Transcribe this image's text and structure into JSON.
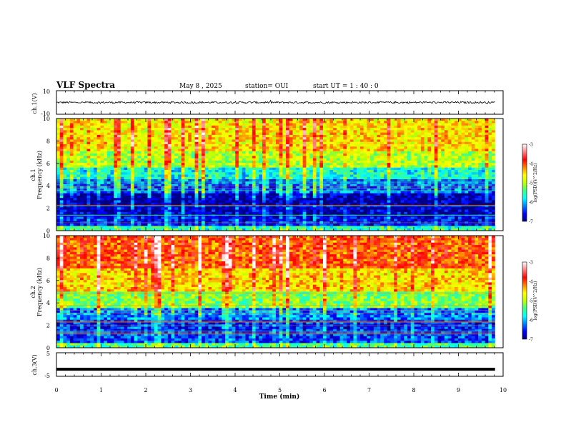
{
  "header": {
    "title": "VLF Spectra",
    "date": "May 8 , 2025",
    "station": "station= OUI",
    "start": "start UT = 1 : 40 : 0"
  },
  "chart_data": [
    {
      "type": "line",
      "panel": "ch1-waveform",
      "ylabel": "ch.1(V)",
      "ylim": [
        -10,
        10
      ],
      "y_ticks": [
        "10",
        "-10"
      ],
      "xlim": [
        0,
        10
      ],
      "series": [
        {
          "baseline": 0,
          "noise_amplitude": 0.8,
          "values_note_min": -1.5,
          "values_note_max": 1.5
        }
      ]
    },
    {
      "type": "heatmap",
      "panel": "ch1-spectrogram",
      "ylabel_line1": "ch.1",
      "ylabel_line2": "Frequency (kHz)",
      "ylim": [
        0,
        10
      ],
      "y_ticks": [
        "0",
        "2",
        "4",
        "6",
        "8",
        "10"
      ],
      "xlim": [
        0,
        9.82
      ],
      "freq_bands_khz": [
        {
          "from": 0.0,
          "to": 0.4,
          "level": -5.6
        },
        {
          "from": 0.4,
          "to": 1.2,
          "level": -6.6
        },
        {
          "from": 1.2,
          "to": 2.2,
          "level": -6.8
        },
        {
          "from": 2.2,
          "to": 3.3,
          "level": -6.9
        },
        {
          "from": 3.3,
          "to": 4.6,
          "level": -6.3
        },
        {
          "from": 4.6,
          "to": 5.6,
          "level": -5.7
        },
        {
          "from": 5.6,
          "to": 7.0,
          "level": -5.0
        },
        {
          "from": 7.0,
          "to": 10.0,
          "level": -4.6
        }
      ],
      "colorbar": {
        "label": "log(PSD)(V^2/Hz)",
        "range": [
          -7,
          -3
        ],
        "ticks": [
          "-3",
          "-4",
          "-5",
          "-6",
          "-7"
        ]
      }
    },
    {
      "type": "heatmap",
      "panel": "ch2-spectrogram",
      "ylabel_line1": "ch.2",
      "ylabel_line2": "Frequency (kHz)",
      "ylim": [
        0,
        10
      ],
      "y_ticks": [
        "0",
        "2",
        "4",
        "6",
        "8",
        "10"
      ],
      "xlim": [
        0,
        9.82
      ],
      "freq_bands_khz": [
        {
          "from": 0.0,
          "to": 0.4,
          "level": -5.4
        },
        {
          "from": 0.4,
          "to": 1.4,
          "level": -6.4
        },
        {
          "from": 1.4,
          "to": 2.6,
          "level": -6.5
        },
        {
          "from": 2.6,
          "to": 3.6,
          "level": -6.2
        },
        {
          "from": 3.6,
          "to": 5.0,
          "level": -5.2
        },
        {
          "from": 5.0,
          "to": 7.0,
          "level": -4.5
        },
        {
          "from": 7.0,
          "to": 10.0,
          "level": -4.0
        }
      ],
      "colorbar": {
        "label": "log(PSD)(V^2/Hz)",
        "range": [
          -7,
          -3
        ],
        "ticks": [
          "-3",
          "-4",
          "-5",
          "-6",
          "-7"
        ]
      }
    },
    {
      "type": "line",
      "panel": "ch3-waveform",
      "ylabel": "ch.3(V)",
      "ylim": [
        -5,
        5
      ],
      "y_ticks": [
        "5",
        "-5"
      ],
      "xlim": [
        0,
        10
      ],
      "series": [
        {
          "baseline": -2.0,
          "note": "flat thick line"
        }
      ]
    }
  ],
  "x_axis": {
    "label": "Time (min)",
    "min": 0,
    "max": 10,
    "ticks": [
      "0",
      "1",
      "2",
      "3",
      "4",
      "5",
      "6",
      "7",
      "8",
      "9",
      "10"
    ]
  },
  "colors": {
    "colormap": [
      "#000080",
      "#0000ff",
      "#0080ff",
      "#00ffff",
      "#40ff80",
      "#c0ff00",
      "#ffff00",
      "#ff8000",
      "#ff0000",
      "#ff8080",
      "#ffffff"
    ]
  }
}
